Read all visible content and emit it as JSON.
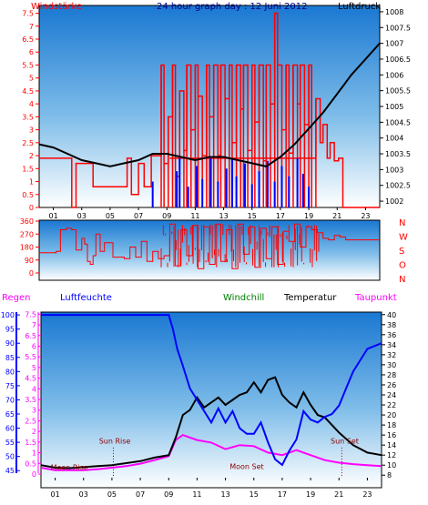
{
  "header": {
    "title": "24 hour graph day : 12 Juni 2012",
    "left_label": "Windstärke",
    "right_label": "Luftdruck"
  },
  "colors": {
    "wind": "#ff0000",
    "gust_low": "#0000ff",
    "pressure": "#000000",
    "direction": "#ff0000",
    "humidity": "#0000ff",
    "temperature": "#000000",
    "dewpoint": "#ff00ff",
    "windchill": "#008000",
    "rain": "#ff00ff",
    "sky_top": "#1a78d2",
    "sky_bottom": "#ffffff"
  },
  "x_ticks": [
    "01",
    "03",
    "05",
    "07",
    "09",
    "11",
    "13",
    "15",
    "17",
    "19",
    "21",
    "23"
  ],
  "chart_data": [
    {
      "type": "bar",
      "name": "wind",
      "title": "24 hour graph day : 12 Juni 2012",
      "ylabel": "Windstärke",
      "y2label": "Luftdruck",
      "yticks": [
        "0",
        "0.5",
        "1",
        "1.5",
        "2",
        "2.5",
        "3",
        "3.5",
        "4",
        "4.5",
        "5",
        "5.5",
        "6",
        "6.5",
        "7",
        "7.5"
      ],
      "y2ticks": [
        "1002",
        "1002.5",
        "1003",
        "1003.5",
        "1004",
        "1004.5",
        "1005",
        "1005.5",
        "1006",
        "1006.5",
        "1007",
        "1007.5",
        "1008"
      ],
      "ylim": [
        0,
        7.8
      ],
      "y2lim": [
        1001.8,
        1008.2
      ],
      "xlim": [
        0,
        24
      ],
      "series": [
        {
          "name": "Windstärke",
          "x": [
            0.0,
            2.3,
            2.6,
            3.8,
            6.2,
            6.5,
            7.0,
            7.4,
            7.9,
            8.6,
            8.8,
            9.1,
            9.4,
            9.6,
            9.9,
            10.2,
            10.4,
            10.7,
            11.0,
            11.2,
            11.5,
            11.8,
            12.0,
            12.3,
            12.6,
            12.8,
            13.1,
            13.4,
            13.6,
            13.9,
            14.2,
            14.4,
            14.7,
            15.0,
            15.2,
            15.5,
            15.8,
            16.0,
            16.3,
            16.6,
            16.8,
            17.1,
            17.4,
            17.6,
            17.9,
            18.2,
            18.4,
            18.7,
            19.0,
            19.2,
            19.5,
            19.8,
            20.0,
            20.3,
            20.5,
            20.8,
            21.1,
            21.4,
            22.5
          ],
          "values": [
            1.9,
            0.0,
            1.7,
            0.8,
            1.9,
            0.5,
            1.7,
            0.8,
            2.0,
            5.5,
            1.7,
            3.5,
            5.5,
            1.2,
            4.5,
            2.2,
            5.5,
            3.0,
            5.5,
            4.3,
            2.0,
            5.5,
            3.5,
            5.5,
            2.0,
            5.5,
            4.2,
            5.5,
            2.5,
            5.5,
            3.8,
            5.5,
            2.2,
            5.5,
            3.3,
            5.5,
            1.8,
            5.5,
            4.0,
            7.5,
            5.5,
            3.0,
            5.5,
            2.1,
            5.5,
            4.0,
            5.5,
            3.2,
            5.5,
            1.9,
            4.2,
            2.5,
            3.2,
            1.9,
            2.5,
            1.8,
            1.9,
            0.0,
            0.0
          ]
        },
        {
          "name": "Luftdruck",
          "x": [
            0,
            1,
            2,
            3,
            4,
            5,
            6,
            7,
            8,
            9,
            10,
            11,
            12,
            13,
            14,
            15,
            16,
            17,
            18,
            19,
            20,
            21,
            22,
            23,
            24
          ],
          "values": [
            1003.8,
            1003.7,
            1003.5,
            1003.3,
            1003.2,
            1003.1,
            1003.2,
            1003.3,
            1003.5,
            1003.5,
            1003.4,
            1003.3,
            1003.4,
            1003.4,
            1003.3,
            1003.2,
            1003.1,
            1003.4,
            1003.8,
            1004.3,
            1004.8,
            1005.4,
            1006.0,
            1006.5,
            1007.0
          ]
        },
        {
          "name": "Windstärke (min)",
          "x": [
            8.0,
            9.7,
            9.9,
            10.5,
            11.1,
            11.5,
            12.1,
            12.6,
            13.2,
            13.6,
            13.9,
            14.5,
            15.0,
            15.5,
            16.1,
            16.6,
            17.1,
            17.6,
            18.2,
            18.6,
            19.0
          ],
          "values": [
            0.6,
            1.0,
            1.5,
            0.4,
            1.2,
            0.7,
            1.5,
            0.6,
            1.1,
            1.5,
            0.8,
            1.3,
            0.5,
            1.0,
            1.4,
            0.6,
            1.2,
            0.8,
            1.5,
            0.9,
            0.4
          ]
        }
      ]
    },
    {
      "type": "line",
      "name": "direction",
      "yticks": [
        "0",
        "90",
        "180",
        "270",
        "360"
      ],
      "ylim": [
        0,
        360
      ],
      "xlim": [
        0,
        24
      ],
      "right_labels": [
        "N",
        "W",
        "S",
        "O",
        "N"
      ],
      "series": [
        {
          "name": "Windrichtung",
          "x": [
            0.0,
            1.2,
            1.5,
            1.9,
            2.3,
            2.6,
            3.0,
            3.2,
            3.4,
            3.6,
            3.8,
            4.0,
            4.3,
            4.6,
            5.2,
            5.6,
            6.0,
            6.4,
            6.8,
            7.2,
            7.6,
            8.0,
            8.4,
            8.8,
            9.2,
            9.6,
            10.0,
            10.4,
            10.8,
            11.2,
            11.6,
            12.0,
            12.4,
            12.8,
            13.2,
            13.6,
            14.0,
            14.4,
            14.8,
            15.2,
            15.6,
            16.0,
            16.4,
            16.8,
            17.2,
            17.6,
            18.0,
            18.4,
            18.8,
            19.2,
            19.6,
            20.0,
            20.4,
            20.8,
            21.2,
            21.6,
            22.0,
            22.4,
            23.0,
            24.0
          ],
          "values": [
            140,
            150,
            300,
            310,
            300,
            160,
            240,
            200,
            80,
            60,
            120,
            270,
            150,
            210,
            110,
            110,
            100,
            180,
            110,
            220,
            80,
            150,
            100,
            120,
            340,
            50,
            300,
            120,
            330,
            30,
            320,
            60,
            340,
            80,
            300,
            30,
            340,
            130,
            320,
            40,
            310,
            100,
            320,
            60,
            290,
            220,
            340,
            180,
            320,
            300,
            280,
            240,
            230,
            260,
            250,
            230,
            230,
            230,
            230,
            230
          ]
        }
      ]
    },
    {
      "type": "line",
      "name": "humidity-temperature",
      "labels": {
        "regen": "Regen",
        "luftfeuchte": "Luftfeuchte",
        "windchill": "Windchill",
        "temperatur": "Temperatur",
        "taupunkt": "Taupunkt"
      },
      "rain_ticks": [
        "0",
        "0.5",
        "1",
        "1.5",
        "2",
        "2.5",
        "3",
        "3.5",
        "4",
        "4.5",
        "5",
        "5.5",
        "6",
        "6.5",
        "7",
        "7.5"
      ],
      "humidity_ticks": [
        "45",
        "50",
        "55",
        "60",
        "65",
        "70",
        "75",
        "80",
        "85",
        "90",
        "95",
        "100"
      ],
      "temp_ticks": [
        "8",
        "10",
        "12",
        "14",
        "16",
        "18",
        "20",
        "22",
        "24",
        "26",
        "28",
        "30",
        "32",
        "34",
        "36",
        "38",
        "40"
      ],
      "humidity_lim": [
        42.5,
        101
      ],
      "temp_lim": [
        7.5,
        40.5
      ],
      "xlim": [
        0,
        24
      ],
      "annotations": [
        {
          "text": "Sun Rise",
          "x": 5.2,
          "y": 14.3
        },
        {
          "text": "Moon Rise",
          "x": 2.0,
          "y": 9.0
        },
        {
          "text": "Moon Set",
          "x": 14.5,
          "y": 9.2
        },
        {
          "text": "Sun Set",
          "x": 21.4,
          "y": 14.3
        }
      ],
      "series": [
        {
          "name": "Luftfeuchte",
          "x": [
            0,
            1,
            2,
            3,
            4,
            5,
            6,
            7,
            8,
            9,
            9.3,
            9.6,
            10,
            10.5,
            11,
            11.5,
            12,
            12.5,
            13,
            13.5,
            14,
            14.5,
            15,
            15.5,
            16,
            16.5,
            17,
            17.5,
            18,
            18.5,
            19,
            19.5,
            20,
            20.5,
            21,
            21.5,
            22,
            22.5,
            23,
            23.5,
            24
          ],
          "values": [
            100,
            100,
            100,
            100,
            100,
            100,
            100,
            100,
            100,
            100,
            95,
            88,
            82,
            74,
            70,
            66,
            62,
            67,
            62,
            66,
            60,
            58,
            58,
            62,
            55,
            49,
            47,
            52,
            56,
            66,
            63,
            62,
            64,
            65,
            68,
            74,
            80,
            84,
            88,
            89,
            90
          ]
        },
        {
          "name": "Temperatur",
          "x": [
            0,
            1,
            2,
            3,
            4,
            5,
            6,
            7,
            8,
            9,
            9.5,
            10,
            10.5,
            11,
            11.5,
            12,
            12.5,
            13,
            13.5,
            14,
            14.5,
            15,
            15.5,
            16,
            16.5,
            17,
            17.5,
            18,
            18.5,
            19,
            19.5,
            20,
            20.5,
            21,
            22,
            23,
            24
          ],
          "values": [
            10,
            9.5,
            9.4,
            9.6,
            9.8,
            10.0,
            10.4,
            10.8,
            11.5,
            12.0,
            15.5,
            20.0,
            21.0,
            23.5,
            21.5,
            22.5,
            23.5,
            22.0,
            23.0,
            24.0,
            24.5,
            26.5,
            24.5,
            27.0,
            27.5,
            24.0,
            22.5,
            21.5,
            24.5,
            22.0,
            20.0,
            19.5,
            18.0,
            16.5,
            14.0,
            12.5,
            12.0
          ]
        },
        {
          "name": "Taupunkt",
          "x": [
            0,
            1,
            2,
            3,
            4,
            5,
            6,
            7,
            8,
            9,
            9.5,
            10,
            11,
            12,
            13,
            14,
            15,
            16,
            17,
            18,
            19,
            20,
            21,
            22,
            23,
            24
          ],
          "values": [
            9.5,
            9.0,
            9.0,
            9.0,
            9.2,
            9.5,
            9.8,
            10.3,
            11.0,
            11.8,
            15.0,
            16.0,
            15.0,
            14.5,
            13.2,
            14.0,
            13.8,
            12.5,
            12.0,
            13.0,
            12.0,
            11.0,
            10.5,
            10.2,
            10.0,
            9.8
          ]
        }
      ]
    }
  ]
}
